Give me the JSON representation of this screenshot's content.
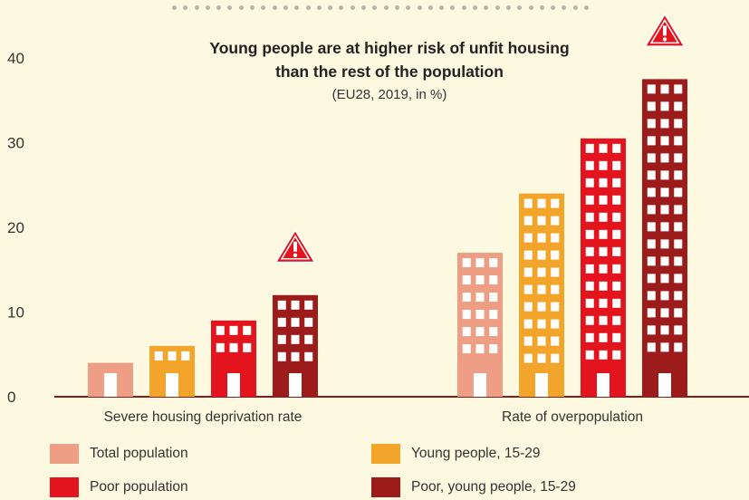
{
  "title_line1": "Young people are at higher risk of unfit housing",
  "title_line2": "than the rest of the population",
  "subtitle": "(EU28, 2019, in %)",
  "chart_data": {
    "type": "bar",
    "categories": [
      "Severe housing deprivation rate",
      "Rate of overpopulation"
    ],
    "series": [
      {
        "name": "Total population",
        "color": "#ef9e86",
        "values": [
          4,
          17
        ]
      },
      {
        "name": "Young people, 15-29",
        "color": "#f2a52a",
        "values": [
          6,
          24
        ]
      },
      {
        "name": "Poor population",
        "color": "#e3141d",
        "values": [
          9,
          30.5
        ]
      },
      {
        "name": "Poor, young people, 15-29",
        "color": "#9c1b1b",
        "values": [
          12,
          37.5
        ]
      }
    ],
    "yticks": [
      0,
      10,
      20,
      30,
      40
    ],
    "ylim": [
      0,
      40
    ],
    "grid": false,
    "legend_position": "bottom",
    "warning_icon": "warning-triangle-icon"
  }
}
